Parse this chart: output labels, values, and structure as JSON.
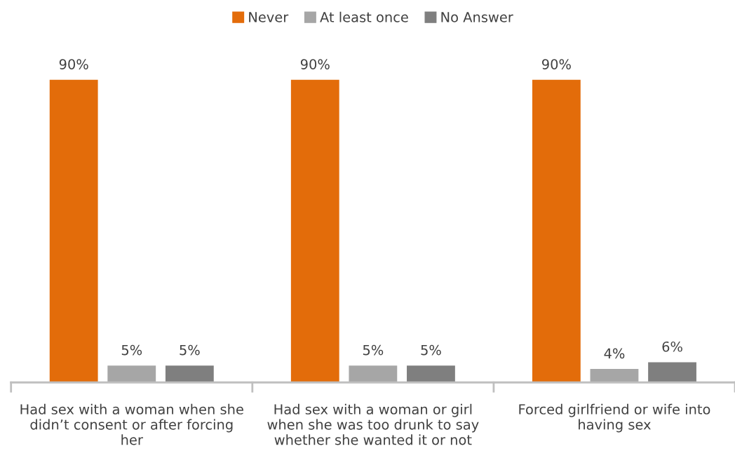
{
  "chart_data": {
    "type": "bar",
    "categories": [
      "Had sex with a woman when she\ndidn’t consent or after forcing\nher",
      "Had sex with a woman or girl\nwhen she was too drunk to say\nwhether she wanted it or not",
      "Forced girlfriend or wife into\nhaving sex"
    ],
    "series": [
      {
        "name": "Never",
        "color": "#e36c0a",
        "values": [
          90,
          90,
          90
        ],
        "value_labels": [
          "90%",
          "90%",
          "90%"
        ]
      },
      {
        "name": "At least once",
        "color": "#a6a6a6",
        "values": [
          5,
          5,
          4
        ],
        "value_labels": [
          "5%",
          "5%",
          "4%"
        ]
      },
      {
        "name": "No Answer",
        "color": "#7f7f7f",
        "values": [
          5,
          5,
          6
        ],
        "value_labels": [
          "5%",
          "5%",
          "6%"
        ]
      }
    ],
    "legend": "top",
    "grid": false
  }
}
